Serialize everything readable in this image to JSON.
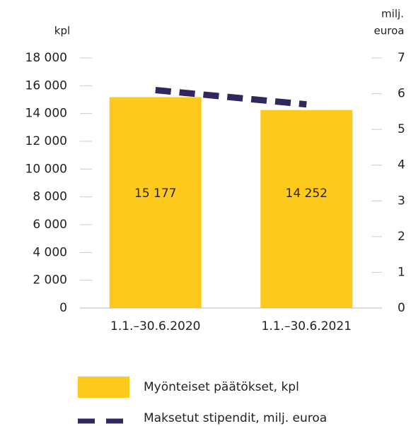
{
  "chart_data": {
    "type": "bar",
    "y_label": "kpl",
    "y2_label": [
      "milj.",
      "euroa"
    ],
    "categories": [
      "1.1.–30.6.2020",
      "1.1.–30.6.2021"
    ],
    "series": [
      {
        "name": "Myönteiset päätökset, kpl",
        "type": "bar",
        "color": "#fcc91c",
        "values": [
          15177,
          14252
        ],
        "value_labels": [
          "15 177",
          "14 252"
        ]
      },
      {
        "name": "Maksetut stipendit, milj. euroa",
        "type": "line",
        "dashed": true,
        "axis": "y2",
        "color": "#33265f",
        "values": [
          6.1,
          5.7
        ]
      }
    ],
    "ylim": [
      0,
      18000
    ],
    "yticks": [
      0,
      {
        "value": 2000,
        "label": "2 000"
      },
      {
        "value": 4000,
        "label": "4 000"
      },
      {
        "value": 6000,
        "label": "6 000"
      },
      {
        "value": 8000,
        "label": "8 000"
      },
      {
        "value": 10000,
        "label": "10 000"
      },
      {
        "value": 12000,
        "label": "12 000"
      },
      {
        "value": 14000,
        "label": "14 000"
      },
      {
        "value": 16000,
        "label": "16 000"
      },
      {
        "value": 18000,
        "label": "18 000"
      }
    ],
    "y2lim": [
      0,
      7
    ],
    "y2ticks": [
      0,
      1,
      2,
      3,
      4,
      5,
      6,
      7
    ]
  }
}
